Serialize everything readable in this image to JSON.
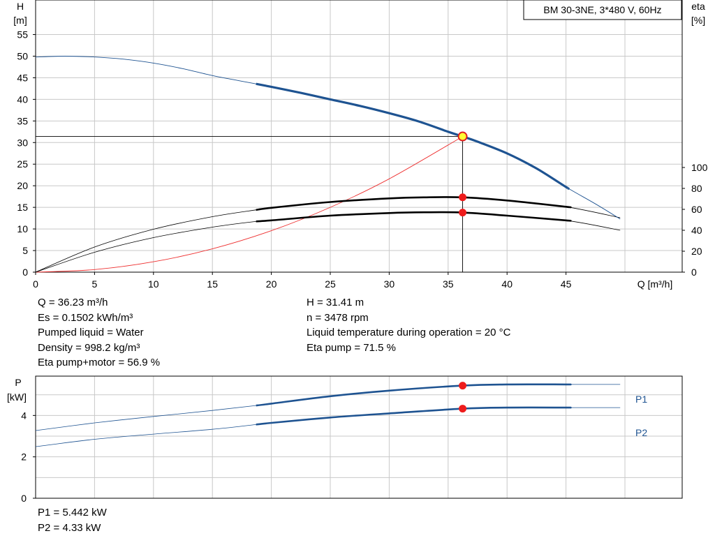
{
  "chart_data": [
    {
      "type": "line",
      "title": "BM 30-3NE, 3*480 V, 60Hz",
      "xlabel": "Q [m³/h]",
      "ylabel_left": [
        "H",
        "[m]"
      ],
      "ylabel_right": [
        "eta",
        "[%]"
      ],
      "x_ticks": [
        0,
        5,
        10,
        15,
        20,
        25,
        30,
        35,
        40,
        45
      ],
      "y_ticks_left": [
        0,
        5,
        10,
        15,
        20,
        25,
        30,
        35,
        40,
        45,
        50,
        55
      ],
      "y_ticks_right": [
        0,
        20,
        40,
        60,
        80,
        100
      ],
      "xlim": [
        0,
        50
      ],
      "ylim_left": [
        0,
        63
      ],
      "ylim_right": [
        0,
        100
      ],
      "grid": true,
      "operating_range": [
        18.7,
        45.1
      ],
      "duty_point": {
        "Q": 36.23,
        "H": 31.41,
        "eta_pump": 71.5,
        "eta_pump_motor": 56.9
      },
      "series": [
        {
          "role": "head",
          "axis": "left",
          "color": "#1e5391",
          "x": [
            0,
            2.5,
            5,
            7.5,
            10,
            12.5,
            15,
            17.5,
            20,
            22.5,
            25,
            27.5,
            30,
            32.5,
            35,
            36.23,
            37.5,
            40,
            42.5,
            45,
            47.5,
            49.6
          ],
          "y": [
            49.8,
            50.0,
            49.8,
            49.3,
            48.4,
            47.1,
            45.5,
            44.2,
            42.9,
            41.5,
            40.0,
            38.5,
            36.8,
            34.9,
            32.5,
            31.4,
            30.2,
            27.5,
            24.0,
            19.7,
            15.8,
            12.3
          ]
        },
        {
          "role": "efficiency",
          "axis": "right",
          "color": "#000000",
          "x": [
            0,
            5,
            10,
            15,
            18.7,
            20,
            25,
            30,
            33,
            36.23,
            40,
            45,
            49.6
          ],
          "y": [
            0,
            24,
            41,
            53,
            59.5,
            61.5,
            67,
            70.5,
            71.5,
            71.5,
            68.5,
            62.5,
            52
          ]
        },
        {
          "role": "efficiency-total",
          "axis": "right",
          "color": "#000000",
          "x": [
            0,
            5,
            10,
            15,
            18.7,
            20,
            25,
            30,
            33,
            36.23,
            40,
            45,
            49.6
          ],
          "y": [
            0,
            19,
            33,
            43,
            48.5,
            49.5,
            54,
            56.5,
            57.2,
            56.9,
            54,
            49.5,
            40
          ]
        },
        {
          "role": "system-curve",
          "axis": "left",
          "color": "#ee3030",
          "x": [
            0,
            5,
            10,
            15,
            20,
            25,
            30,
            36.23
          ],
          "y": [
            0,
            0.6,
            2.4,
            5.4,
            9.6,
            15.0,
            21.6,
            31.41
          ]
        }
      ]
    },
    {
      "type": "line",
      "ylabel": [
        "P",
        "[kW]"
      ],
      "y_ticks": [
        0,
        2,
        4
      ],
      "xlim": [
        0,
        50
      ],
      "ylim": [
        0,
        5.9
      ],
      "grid": true,
      "operating_range": [
        18.7,
        45.1
      ],
      "series": [
        {
          "name": "P1",
          "color": "#1e5391",
          "x": [
            0,
            5,
            10,
            15,
            18.7,
            20,
            25,
            30,
            36.23,
            40,
            45,
            49.6
          ],
          "y": [
            3.27,
            3.64,
            3.95,
            4.24,
            4.48,
            4.57,
            4.93,
            5.2,
            5.442,
            5.5,
            5.5,
            5.5
          ]
        },
        {
          "name": "P2",
          "color": "#1e5391",
          "x": [
            0,
            5,
            10,
            15,
            18.7,
            20,
            25,
            30,
            36.23,
            40,
            45,
            49.6
          ],
          "y": [
            2.49,
            2.85,
            3.1,
            3.33,
            3.56,
            3.64,
            3.9,
            4.1,
            4.33,
            4.38,
            4.38,
            4.38
          ]
        }
      ],
      "duty_point": {
        "Q": 36.23,
        "P1": 5.442,
        "P2": 4.33
      }
    }
  ],
  "info": {
    "q": "Q = 36.23 m³/h",
    "es": "Es = 0.1502 kWh/m³",
    "liquid": "Pumped liquid = Water",
    "density": "Density = 998.2 kg/m³",
    "eta_total": "Eta pump+motor = 56.9 %",
    "h": "H = 31.41 m",
    "n": "n = 3478 rpm",
    "temp": "Liquid temperature during operation = 20 °C",
    "eta_pump": "Eta pump = 71.5 %",
    "p1": "P1 = 5.442 kW",
    "p2": "P2 = 4.33 kW"
  }
}
